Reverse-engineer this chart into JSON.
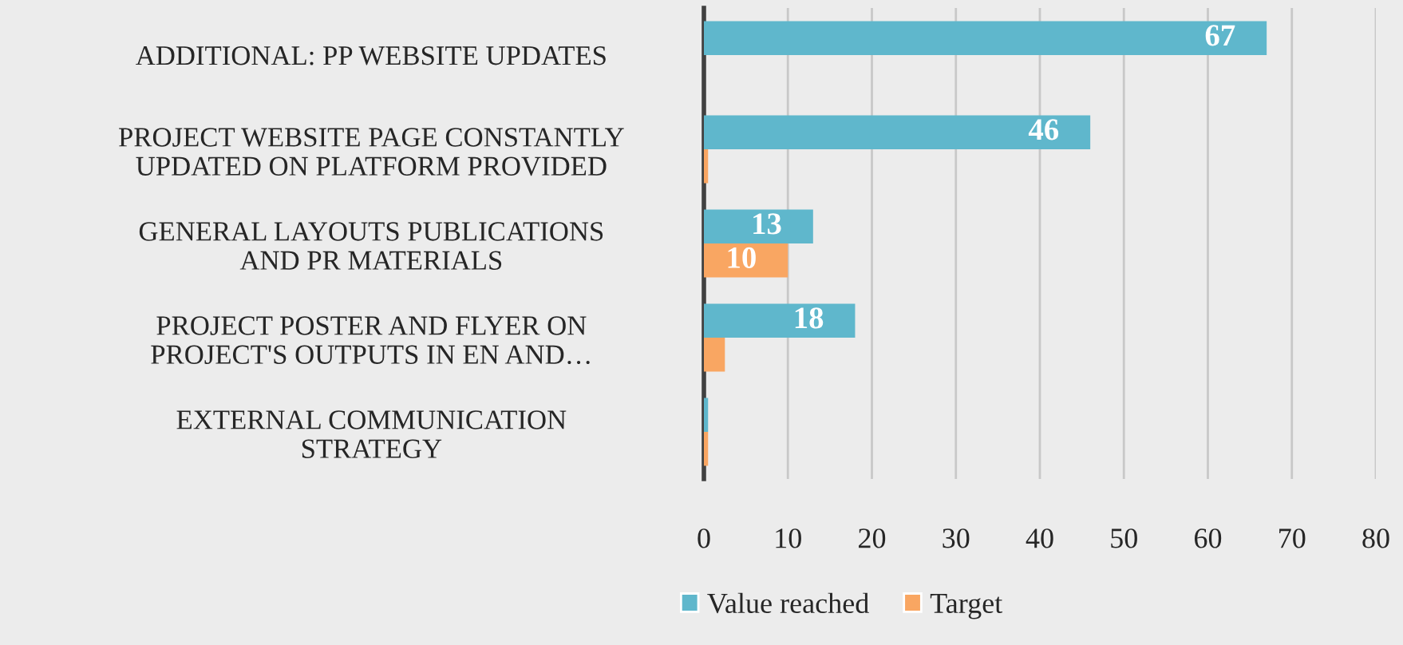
{
  "chart_data": {
    "type": "bar",
    "orientation": "horizontal",
    "categories": [
      "ADDITIONAL: PP WEBSITE UPDATES",
      "PROJECT WEBSITE PAGE CONSTANTLY\nUPDATED ON PLATFORM PROVIDED",
      "GENERAL LAYOUTS PUBLICATIONS\nAND PR MATERIALS",
      "PROJECT POSTER AND FLYER ON\nPROJECT'S OUTPUTS IN EN AND…",
      "EXTERNAL COMMUNICATION\nSTRATEGY"
    ],
    "series": [
      {
        "name": "Value reached",
        "color": "#5fb7cc",
        "values": [
          67,
          46,
          13,
          18,
          0.5
        ],
        "value_labels": [
          "67",
          "46",
          "13",
          "18",
          null
        ]
      },
      {
        "name": "Target",
        "color": "#f9a662",
        "values": [
          null,
          0.5,
          10,
          2.5,
          0.5
        ],
        "value_labels": [
          null,
          null,
          "10",
          null,
          null
        ]
      }
    ],
    "xlim": [
      0,
      80
    ],
    "xticks": [
      0,
      10,
      20,
      30,
      40,
      50,
      60,
      70,
      80
    ],
    "grid": "x",
    "legend": "bottom"
  }
}
